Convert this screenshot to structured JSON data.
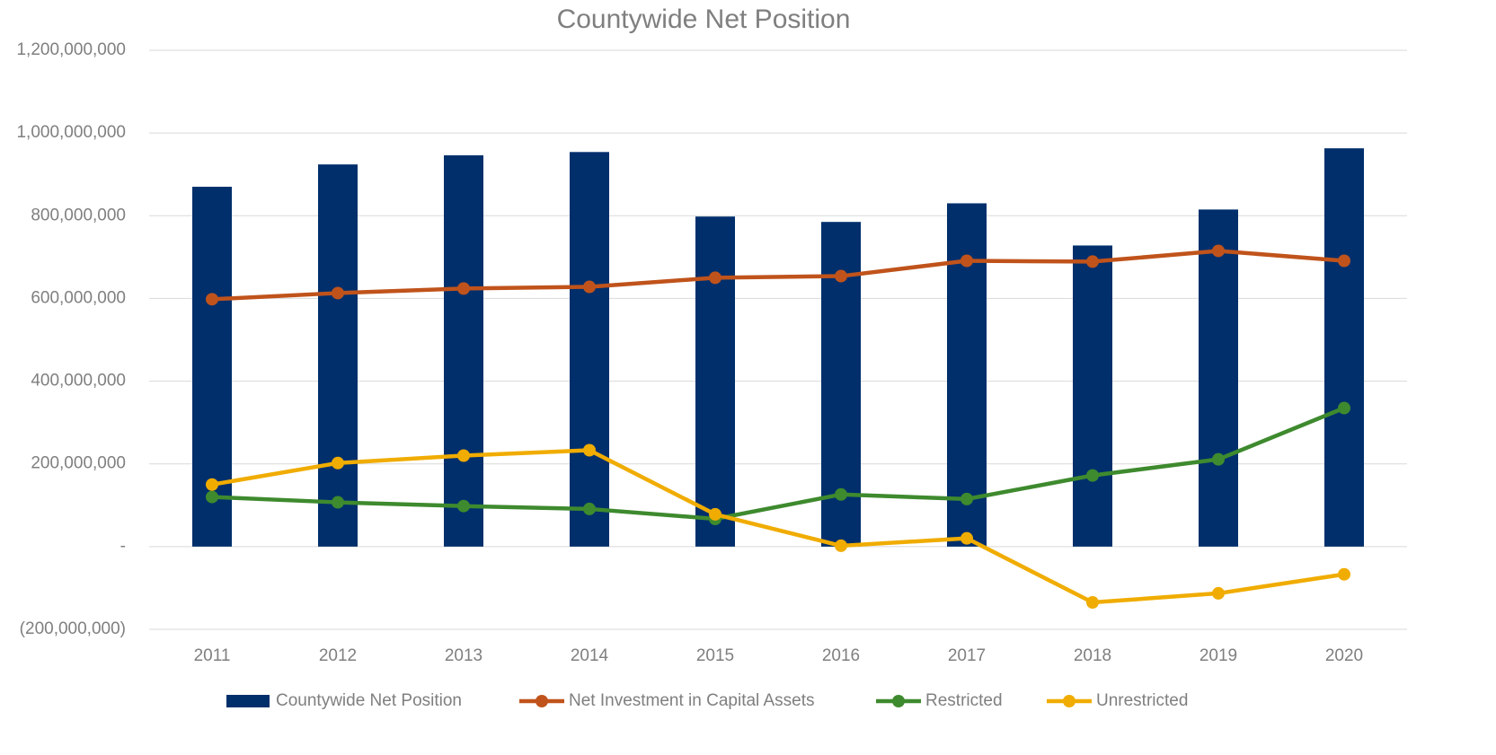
{
  "chart_data": {
    "type": "bar",
    "title": "Countywide Net Position",
    "categories": [
      "2011",
      "2012",
      "2013",
      "2014",
      "2015",
      "2016",
      "2017",
      "2018",
      "2019",
      "2020"
    ],
    "series": [
      {
        "name": "Countywide Net Position",
        "type": "bar",
        "color": "#002f6c",
        "values": [
          870000000,
          924000000,
          946000000,
          954000000,
          798000000,
          785000000,
          830000000,
          728000000,
          815000000,
          963000000
        ]
      },
      {
        "name": "Net Investment in Capital Assets",
        "type": "line",
        "color": "#c0531b",
        "values": [
          598000000,
          613000000,
          624000000,
          628000000,
          650000000,
          654000000,
          691000000,
          689000000,
          715000000,
          691000000
        ]
      },
      {
        "name": "Restricted",
        "type": "line",
        "color": "#3e8a2e",
        "values": [
          120000000,
          107000000,
          98000000,
          91000000,
          67000000,
          126000000,
          115000000,
          172000000,
          211000000,
          335000000
        ]
      },
      {
        "name": "Unrestricted",
        "type": "line",
        "color": "#f0ac00",
        "values": [
          150000000,
          202000000,
          220000000,
          233000000,
          78000000,
          2000000,
          20000000,
          -135000000,
          -113000000,
          -67000000
        ]
      }
    ],
    "ylim": [
      -200000000,
      1200000000
    ],
    "yticks": [
      {
        "value": -200000000,
        "label": "(200,000,000)"
      },
      {
        "value": 0,
        "label": "-"
      },
      {
        "value": 200000000,
        "label": "200,000,000"
      },
      {
        "value": 400000000,
        "label": "400,000,000"
      },
      {
        "value": 600000000,
        "label": "600,000,000"
      },
      {
        "value": 800000000,
        "label": "800,000,000"
      },
      {
        "value": 1000000000,
        "label": "1,000,000,000"
      },
      {
        "value": 1200000000,
        "label": "1,200,000,000"
      }
    ],
    "grid": true,
    "legend": "bottom"
  }
}
